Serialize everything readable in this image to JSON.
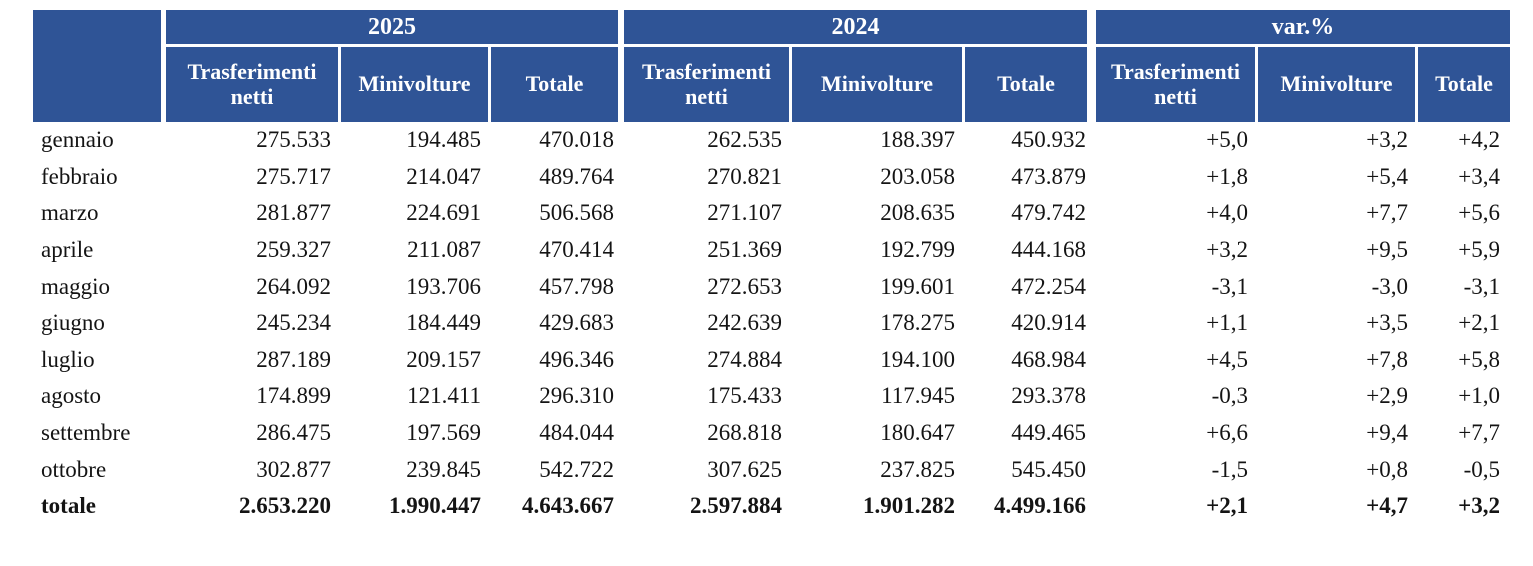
{
  "table": {
    "accent_color": "#2F5496",
    "groups": [
      {
        "label": "2025",
        "columns": [
          "Trasferimenti netti",
          "Minivolture",
          "Totale"
        ]
      },
      {
        "label": "2024",
        "columns": [
          "Trasferimenti netti",
          "Minivolture",
          "Totale"
        ]
      },
      {
        "label": "var.%",
        "columns": [
          "Trasferimenti netti",
          "Minivolture",
          "Totale"
        ]
      }
    ],
    "rows": [
      {
        "label": "gennaio",
        "values": [
          "275.533",
          "194.485",
          "470.018",
          "262.535",
          "188.397",
          "450.932",
          "+5,0",
          "+3,2",
          "+4,2"
        ],
        "is_total": false
      },
      {
        "label": "febbraio",
        "values": [
          "275.717",
          "214.047",
          "489.764",
          "270.821",
          "203.058",
          "473.879",
          "+1,8",
          "+5,4",
          "+3,4"
        ],
        "is_total": false
      },
      {
        "label": "marzo",
        "values": [
          "281.877",
          "224.691",
          "506.568",
          "271.107",
          "208.635",
          "479.742",
          "+4,0",
          "+7,7",
          "+5,6"
        ],
        "is_total": false
      },
      {
        "label": "aprile",
        "values": [
          "259.327",
          "211.087",
          "470.414",
          "251.369",
          "192.799",
          "444.168",
          "+3,2",
          "+9,5",
          "+5,9"
        ],
        "is_total": false
      },
      {
        "label": "maggio",
        "values": [
          "264.092",
          "193.706",
          "457.798",
          "272.653",
          "199.601",
          "472.254",
          "-3,1",
          "-3,0",
          "-3,1"
        ],
        "is_total": false
      },
      {
        "label": "giugno",
        "values": [
          "245.234",
          "184.449",
          "429.683",
          "242.639",
          "178.275",
          "420.914",
          "+1,1",
          "+3,5",
          "+2,1"
        ],
        "is_total": false
      },
      {
        "label": "luglio",
        "values": [
          "287.189",
          "209.157",
          "496.346",
          "274.884",
          "194.100",
          "468.984",
          "+4,5",
          "+7,8",
          "+5,8"
        ],
        "is_total": false
      },
      {
        "label": "agosto",
        "values": [
          "174.899",
          "121.411",
          "296.310",
          "175.433",
          "117.945",
          "293.378",
          "-0,3",
          "+2,9",
          "+1,0"
        ],
        "is_total": false
      },
      {
        "label": "settembre",
        "values": [
          "286.475",
          "197.569",
          "484.044",
          "268.818",
          "180.647",
          "449.465",
          "+6,6",
          "+9,4",
          "+7,7"
        ],
        "is_total": false
      },
      {
        "label": "ottobre",
        "values": [
          "302.877",
          "239.845",
          "542.722",
          "307.625",
          "237.825",
          "545.450",
          "-1,5",
          "+0,8",
          "-0,5"
        ],
        "is_total": false
      },
      {
        "label": "totale",
        "values": [
          "2.653.220",
          "1.990.447",
          "4.643.667",
          "2.597.884",
          "1.901.282",
          "4.499.166",
          "+2,1",
          "+4,7",
          "+3,2"
        ],
        "is_total": true
      }
    ]
  }
}
